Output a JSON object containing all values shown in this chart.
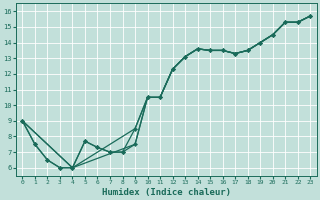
{
  "xlabel": "Humidex (Indice chaleur)",
  "bg_color": "#c2e0da",
  "line_color": "#1a6b5a",
  "grid_color": "#ffffff",
  "xlim": [
    0,
    23
  ],
  "ylim": [
    5.5,
    16.5
  ],
  "xticks": [
    0,
    1,
    2,
    3,
    4,
    5,
    6,
    7,
    8,
    9,
    10,
    11,
    12,
    13,
    14,
    15,
    16,
    17,
    18,
    19,
    20,
    21,
    22,
    23
  ],
  "yticks": [
    6,
    7,
    8,
    9,
    10,
    11,
    12,
    13,
    14,
    15,
    16
  ],
  "line1_x": [
    0,
    1,
    2,
    3,
    4,
    5,
    6,
    7,
    8,
    9,
    10,
    11,
    12,
    13,
    14,
    15,
    16,
    17,
    18,
    19,
    20,
    21,
    22,
    23
  ],
  "line1_y": [
    9.0,
    7.5,
    6.5,
    6.0,
    6.0,
    7.7,
    7.3,
    7.0,
    7.0,
    7.5,
    10.5,
    10.5,
    12.3,
    13.1,
    13.6,
    13.5,
    13.5,
    13.3,
    13.5,
    14.0,
    14.5,
    15.3,
    15.3,
    15.7
  ],
  "line2_x": [
    0,
    1,
    2,
    3,
    4,
    5,
    6,
    7,
    8,
    9,
    10,
    11,
    12,
    13,
    14,
    15,
    16,
    17,
    18,
    19,
    20,
    21,
    22,
    23
  ],
  "line2_y": [
    9.0,
    7.5,
    6.5,
    6.0,
    6.0,
    7.7,
    7.3,
    7.0,
    7.0,
    8.5,
    10.5,
    10.5,
    12.3,
    13.1,
    13.6,
    13.5,
    13.5,
    13.3,
    13.5,
    14.0,
    14.5,
    15.3,
    15.3,
    15.7
  ],
  "line3_x": [
    0,
    4,
    9,
    10,
    11,
    12,
    13,
    14,
    15,
    16,
    17,
    18,
    19,
    20,
    21,
    22,
    23
  ],
  "line3_y": [
    9.0,
    6.0,
    8.5,
    10.5,
    10.5,
    12.3,
    13.1,
    13.6,
    13.5,
    13.5,
    13.3,
    13.5,
    14.0,
    14.5,
    15.3,
    15.3,
    15.7
  ],
  "line4_x": [
    0,
    4,
    9,
    10,
    11,
    12,
    13,
    14,
    15,
    16,
    17,
    18,
    19,
    20,
    21,
    22,
    23
  ],
  "line4_y": [
    9.0,
    6.0,
    7.5,
    10.5,
    10.5,
    12.3,
    13.1,
    13.6,
    13.5,
    13.5,
    13.3,
    13.5,
    14.0,
    14.5,
    15.3,
    15.3,
    15.7
  ]
}
